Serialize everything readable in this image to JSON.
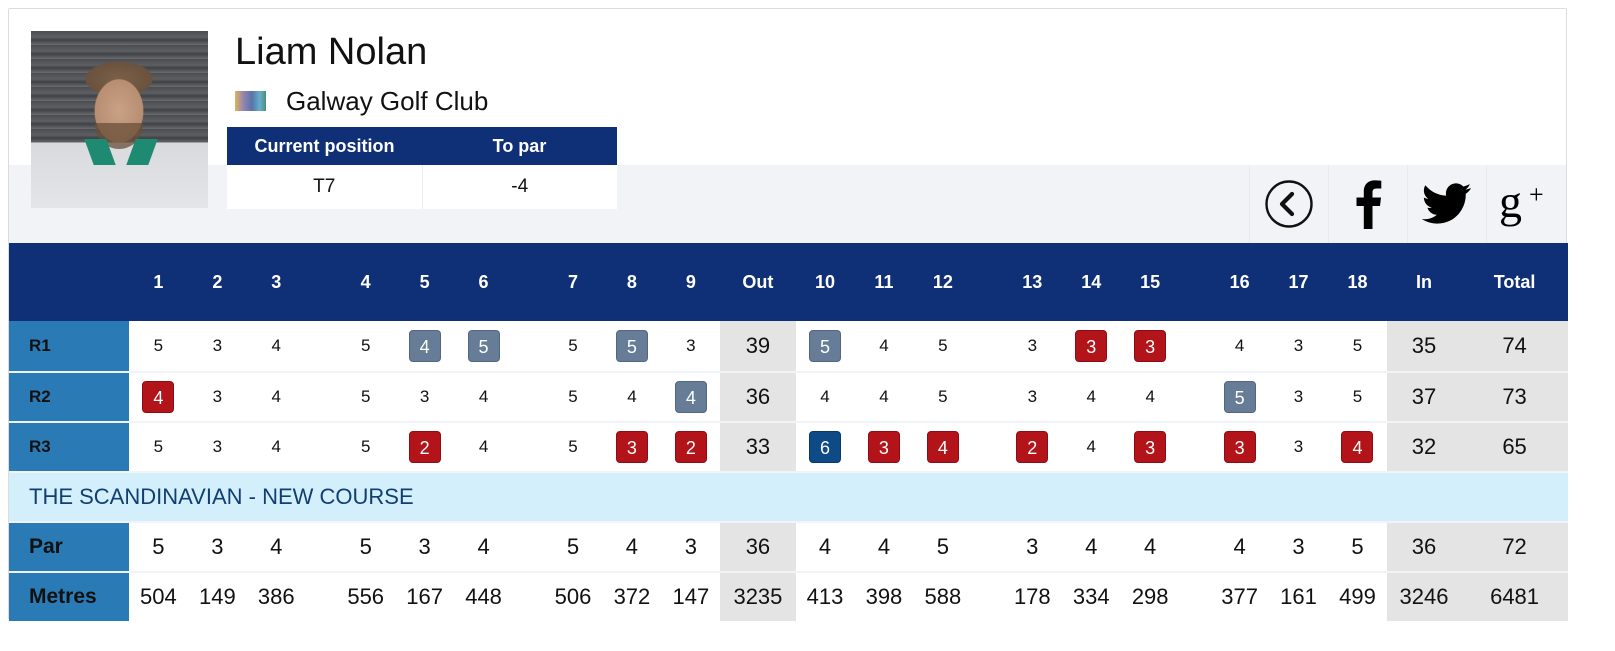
{
  "player": {
    "name": "Liam Nolan",
    "club": "Galway Golf Club",
    "position_header": "Current position",
    "to_par_header": "To par",
    "position": "T7",
    "to_par": "-4"
  },
  "share": {
    "back_icon": "chevron-left-circle-icon",
    "facebook_icon": "facebook-icon",
    "twitter_icon": "twitter-icon",
    "googleplus_icon": "google-plus-icon"
  },
  "colors": {
    "header_navy": "#0f2f76",
    "label_blue": "#2a7ab5",
    "birdie_red": "#b2141a",
    "bogey_slate": "#667c97",
    "double_bogey_navy": "#0e4a86",
    "course_band": "#d2effb",
    "subtotal_gray": "#e4e4e4"
  },
  "scorecard": {
    "headers": {
      "holes": [
        "1",
        "2",
        "3",
        "4",
        "5",
        "6",
        "7",
        "8",
        "9",
        "10",
        "11",
        "12",
        "13",
        "14",
        "15",
        "16",
        "17",
        "18"
      ],
      "out": "Out",
      "in": "In",
      "total": "Total"
    },
    "rounds": [
      {
        "label": "R1",
        "scores": [
          "5",
          "3",
          "4",
          "5",
          "4",
          "5",
          "5",
          "5",
          "3",
          "5",
          "4",
          "5",
          "3",
          "3",
          "3",
          "4",
          "3",
          "5"
        ],
        "marks": [
          "",
          "",
          "",
          "",
          "bogey",
          "bogey",
          "",
          "bogey",
          "",
          "bogey",
          "",
          "",
          "",
          "birdie",
          "birdie",
          "",
          "",
          ""
        ],
        "out": "39",
        "in": "35",
        "total": "74"
      },
      {
        "label": "R2",
        "scores": [
          "4",
          "3",
          "4",
          "5",
          "3",
          "4",
          "5",
          "4",
          "4",
          "4",
          "4",
          "5",
          "3",
          "4",
          "4",
          "5",
          "3",
          "5"
        ],
        "marks": [
          "birdie",
          "",
          "",
          "",
          "",
          "",
          "",
          "",
          "bogey",
          "",
          "",
          "",
          "",
          "",
          "",
          "bogey",
          "",
          ""
        ],
        "out": "36",
        "in": "37",
        "total": "73"
      },
      {
        "label": "R3",
        "scores": [
          "5",
          "3",
          "4",
          "5",
          "2",
          "4",
          "5",
          "3",
          "2",
          "6",
          "3",
          "4",
          "2",
          "4",
          "3",
          "3",
          "3",
          "4"
        ],
        "marks": [
          "",
          "",
          "",
          "",
          "birdie",
          "",
          "",
          "birdie",
          "birdie",
          "double",
          "birdie",
          "birdie",
          "birdie",
          "",
          "birdie",
          "birdie",
          "",
          "birdie"
        ],
        "out": "33",
        "in": "32",
        "total": "65"
      }
    ],
    "course_name": "THE SCANDINAVIAN - NEW COURSE",
    "par": {
      "label": "Par",
      "values": [
        "5",
        "3",
        "4",
        "5",
        "3",
        "4",
        "5",
        "4",
        "3",
        "4",
        "4",
        "5",
        "3",
        "4",
        "4",
        "4",
        "3",
        "5"
      ],
      "out": "36",
      "in": "36",
      "total": "72"
    },
    "metres": {
      "label": "Metres",
      "values": [
        "504",
        "149",
        "386",
        "556",
        "167",
        "448",
        "506",
        "372",
        "147",
        "413",
        "398",
        "588",
        "178",
        "334",
        "298",
        "377",
        "161",
        "499"
      ],
      "out": "3235",
      "in": "3246",
      "total": "6481"
    }
  }
}
